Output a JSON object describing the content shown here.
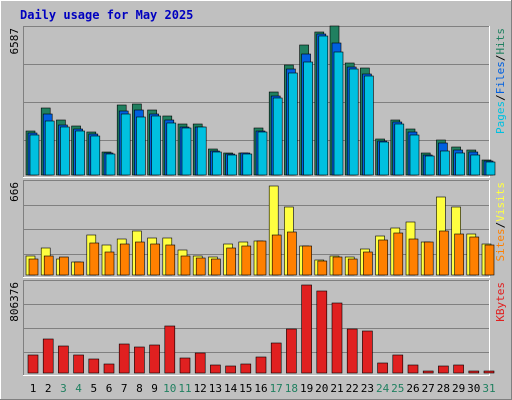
{
  "chart_data": {
    "type": "bar",
    "title": "Daily usage for May 2025",
    "colors": {
      "background": "#c0c0c0",
      "outer_border": "#a0a0a0",
      "title": "#0000c0",
      "gridline": "#808080",
      "hits": "#208060",
      "files": "#0060e0",
      "pages": "#00c0e0",
      "visits": "#ffff40",
      "sites": "#ff8000",
      "kbytes": "#e02020",
      "weekend_day": "#208060",
      "weekday": "#000000"
    },
    "categories": [
      "1",
      "2",
      "3",
      "4",
      "5",
      "6",
      "7",
      "8",
      "9",
      "10",
      "11",
      "12",
      "13",
      "14",
      "15",
      "16",
      "17",
      "18",
      "19",
      "20",
      "21",
      "22",
      "23",
      "24",
      "25",
      "26",
      "27",
      "28",
      "29",
      "30",
      "31"
    ],
    "weekend_days": [
      "3",
      "4",
      "10",
      "11",
      "17",
      "18",
      "24",
      "25",
      "31"
    ],
    "panels": [
      {
        "name": "pages-files-hits",
        "max_label": "6587",
        "ymax": 6587,
        "legend": [
          {
            "text": "Pages",
            "color": "#00c0e0"
          },
          {
            "text": "/",
            "color": "#000000"
          },
          {
            "text": "Files",
            "color": "#0060e0"
          },
          {
            "text": "/",
            "color": "#000000"
          },
          {
            "text": "Hits",
            "color": "#208060"
          }
        ],
        "series": [
          {
            "name": "Hits",
            "color": "#208060",
            "values": [
              2000,
              3030,
              2490,
              2240,
              1950,
              1040,
              3170,
              3230,
              2960,
              2670,
              2300,
              2300,
              1180,
              1000,
              1020,
              2140,
              3750,
              4980,
              5900,
              6500,
              6750,
              5080,
              4850,
              1650,
              2500,
              2080,
              980,
              1600,
              1250,
              1150,
              700
            ]
          },
          {
            "name": "Files",
            "color": "#0060e0",
            "values": [
              1900,
              2750,
              2280,
              2100,
              1850,
              980,
              2900,
              2950,
              2750,
              2500,
              2180,
              2200,
              1100,
              960,
              980,
              2020,
              3600,
              4800,
              5500,
              6400,
              6000,
              4900,
              4600,
              1550,
              2400,
              1950,
              920,
              1450,
              1150,
              1050,
              650
            ]
          },
          {
            "name": "Pages",
            "color": "#00c0e0",
            "values": [
              1830,
              2460,
              2180,
              2020,
              1790,
              940,
              2790,
              2640,
              2700,
              2340,
              2140,
              2160,
              1040,
              910,
              940,
              1960,
              3500,
              4650,
              5150,
              6300,
              5600,
              4800,
              4500,
              1480,
              2310,
              1800,
              860,
              1100,
              990,
              900,
              600
            ]
          }
        ]
      },
      {
        "name": "sites-visits",
        "max_label": "666",
        "ymax": 666,
        "legend": [
          {
            "text": "Sites",
            "color": "#ff8000"
          },
          {
            "text": "/",
            "color": "#000000"
          },
          {
            "text": "Visits",
            "color": "#ffff40"
          }
        ],
        "series": [
          {
            "name": "Visits",
            "color": "#ffff40",
            "values": [
              140,
              195,
              120,
              95,
              290,
              220,
              265,
              320,
              270,
              270,
              180,
              140,
              130,
              230,
              240,
              250,
              655,
              500,
              210,
              110,
              140,
              130,
              190,
              285,
              345,
              390,
              245,
              570,
              500,
              300,
              230
            ]
          },
          {
            "name": "Sites",
            "color": "#ff8000",
            "values": [
              120,
              140,
              130,
              95,
              235,
              165,
              225,
              240,
              230,
              220,
              140,
              125,
              115,
              195,
              215,
              250,
              290,
              315,
              210,
              105,
              130,
              120,
              170,
              255,
              310,
              260,
              240,
              320,
              300,
              280,
              220
            ]
          }
        ]
      },
      {
        "name": "kbytes",
        "max_label": "806376",
        "ymax": 806376,
        "legend": [
          {
            "text": "KBytes",
            "color": "#e02020"
          }
        ],
        "series": [
          {
            "name": "KBytes",
            "color": "#e02020",
            "values": [
              160000,
              305000,
              245000,
              165000,
              130000,
              85000,
              265000,
              235000,
              250000,
              430000,
              140000,
              180000,
              75000,
              60000,
              85000,
              145000,
              275000,
              395000,
              800000,
              745000,
              635000,
              400000,
              380000,
              95000,
              165000,
              70000,
              18000,
              65000,
              70000,
              20000,
              18000
            ]
          }
        ]
      }
    ]
  }
}
